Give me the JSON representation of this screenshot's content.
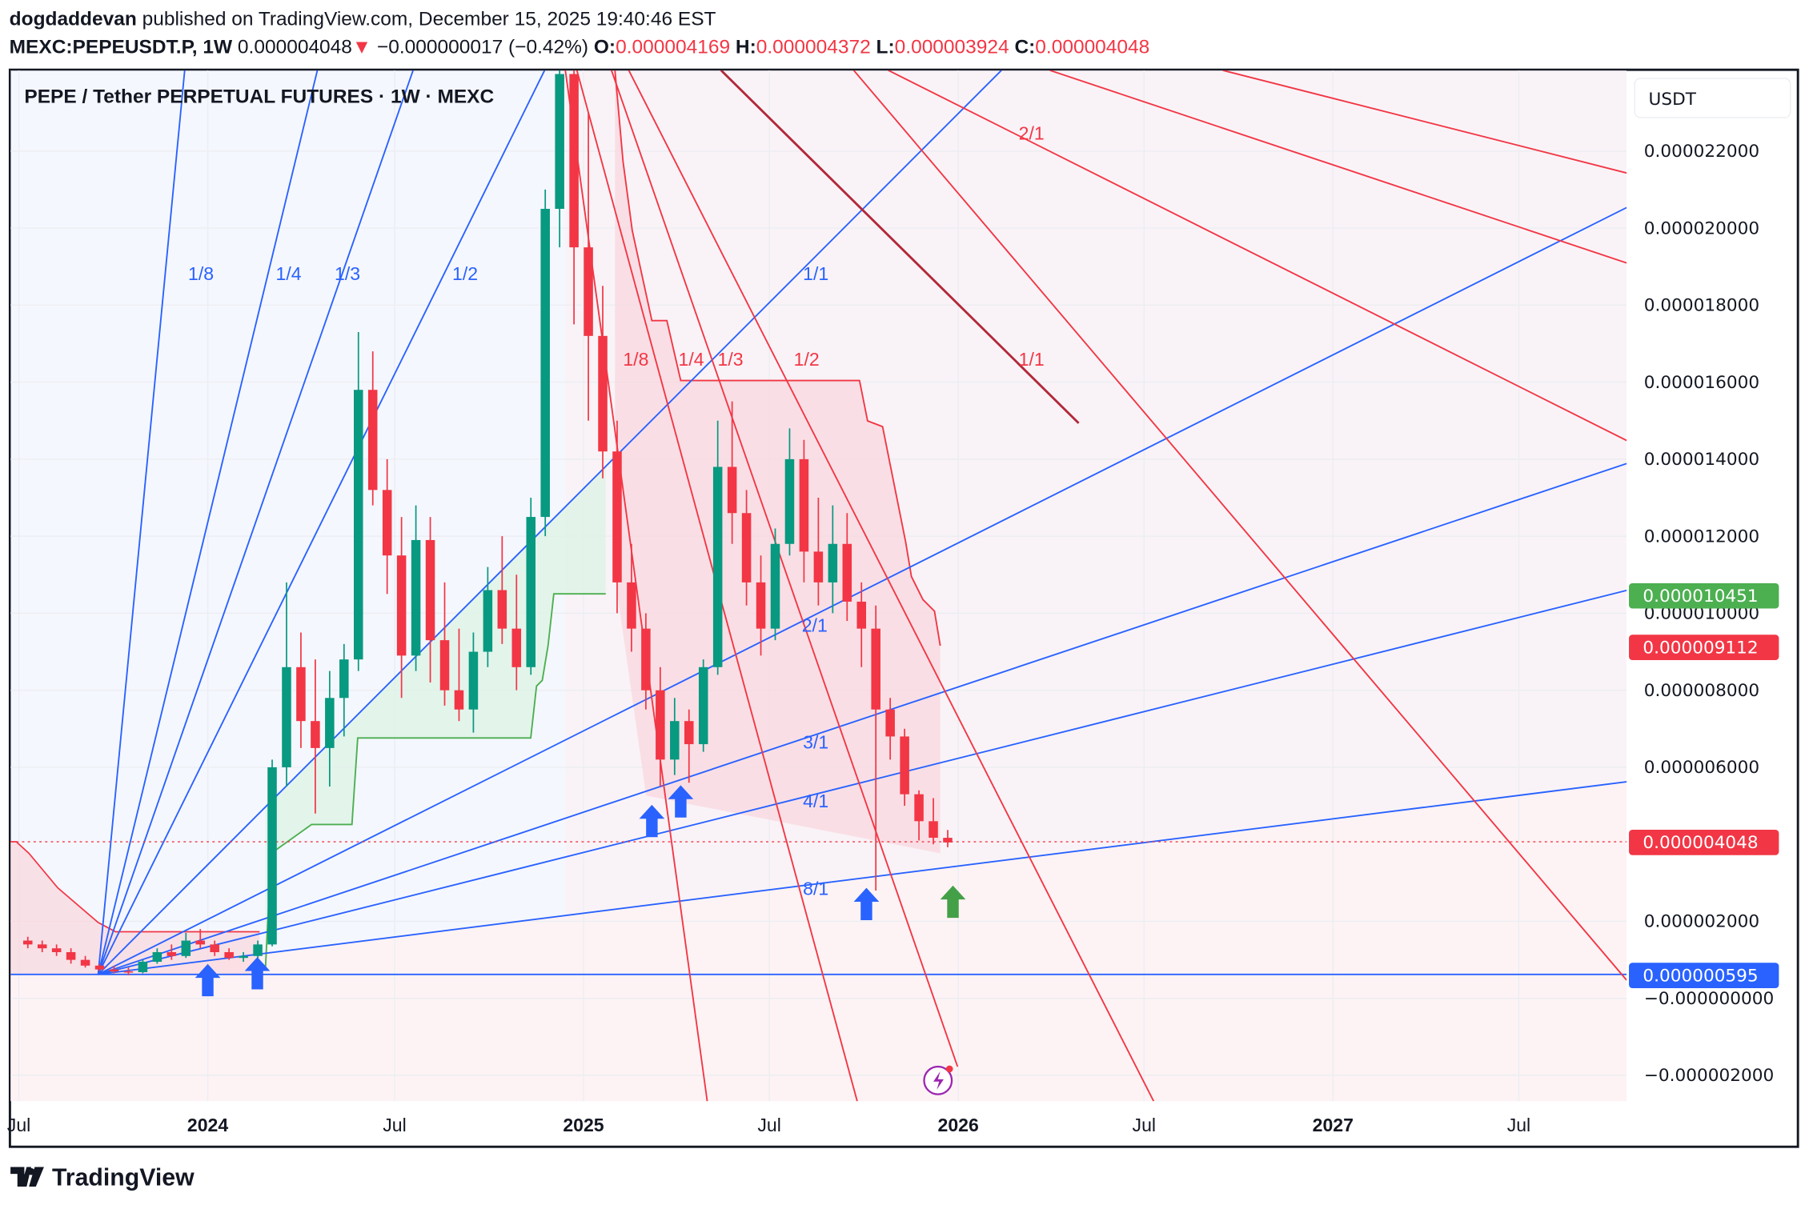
{
  "header": {
    "author": "dogdaddevan",
    "published": " published on TradingView.com, December 15, 2025 19:40:46 EST",
    "symbol": "MEXC:PEPEUSDT.P, 1W",
    "last": "0.000004048",
    "change": "−0.000000017 (−0.42%)",
    "o_label": "O:",
    "o": "0.000004169",
    "h_label": "H:",
    "h": "0.000004372",
    "l_label": "L:",
    "l": "0.000003924",
    "c_label": "C:",
    "c": "0.000004048"
  },
  "chart": {
    "title": "PEPE / Tether PERPETUAL FUTURES · 1W · MEXC",
    "currency": "USDT",
    "price_ticks": [
      {
        "label": "0.000022000",
        "value": 22
      },
      {
        "label": "0.000020000",
        "value": 20
      },
      {
        "label": "0.000018000",
        "value": 18
      },
      {
        "label": "0.000016000",
        "value": 16
      },
      {
        "label": "0.000014000",
        "value": 14
      },
      {
        "label": "0.000012000",
        "value": 12
      },
      {
        "label": "0.000010000",
        "value": 10
      },
      {
        "label": "0.000008000",
        "value": 8
      },
      {
        "label": "0.000006000",
        "value": 6
      },
      {
        "label": "0.000002000",
        "value": 2
      },
      {
        "label": "−0.000000000",
        "value": 0
      },
      {
        "label": "−0.000002000",
        "value": -2
      }
    ],
    "time_ticks": [
      {
        "label": "Jul",
        "date": "2023-07-01",
        "year": false
      },
      {
        "label": "2024",
        "date": "2024-01-01",
        "year": true
      },
      {
        "label": "Jul",
        "date": "2024-07-01",
        "year": false
      },
      {
        "label": "2025",
        "date": "2025-01-01",
        "year": true
      },
      {
        "label": "Jul",
        "date": "2025-07-01",
        "year": false
      },
      {
        "label": "2026",
        "date": "2026-01-01",
        "year": true
      },
      {
        "label": "Jul",
        "date": "2026-07-01",
        "year": false
      },
      {
        "label": "2027",
        "date": "2027-01-01",
        "year": true
      },
      {
        "label": "Jul",
        "date": "2027-07-01",
        "year": false
      }
    ],
    "badges": [
      {
        "label": "0.000010451",
        "value": 10.451,
        "color": "#4caf50"
      },
      {
        "label": "0.000009112",
        "value": 9.112,
        "color": "#f23645"
      },
      {
        "label": "0.000004048",
        "value": 4.048,
        "color": "#f23645"
      },
      {
        "label": "0.000000595",
        "value": 0.595,
        "color": "#2962ff"
      }
    ],
    "fan_blue_labels": [
      "1/8",
      "1/4",
      "1/3",
      "1/2",
      "1/1",
      "2/1",
      "3/1",
      "4/1",
      "8/1"
    ],
    "fan_red_labels": [
      "1/8",
      "1/4",
      "1/3",
      "1/2",
      "1/1",
      "2/1"
    ],
    "colors": {
      "up": "#089981",
      "down": "#f23645",
      "fan_blue": "#2962ff",
      "fan_red": "#f23645",
      "bg": "#ffffff"
    }
  },
  "footer": {
    "brand": "TradingView"
  },
  "chart_data": {
    "type": "candlestick",
    "title": "PEPE / Tether PERPETUAL FUTURES · 1W · MEXC",
    "ylabel": "USDT",
    "unit_note_scale": "values ×1e-6 USDT",
    "ylim": [
      -2.7,
      24
    ],
    "candles": [
      [
        "2023-07-03",
        1.5,
        1.6,
        1.3,
        1.4
      ],
      [
        "2023-07-17",
        1.4,
        1.5,
        1.2,
        1.3
      ],
      [
        "2023-07-31",
        1.3,
        1.4,
        1.1,
        1.2
      ],
      [
        "2023-08-14",
        1.2,
        1.3,
        0.9,
        1.0
      ],
      [
        "2023-08-28",
        1.0,
        1.1,
        0.8,
        0.85
      ],
      [
        "2023-09-11",
        0.85,
        0.9,
        0.7,
        0.75
      ],
      [
        "2023-09-25",
        0.75,
        0.85,
        0.65,
        0.7
      ],
      [
        "2023-10-09",
        0.7,
        0.8,
        0.6,
        0.68
      ],
      [
        "2023-10-23",
        0.68,
        1.0,
        0.65,
        0.95
      ],
      [
        "2023-11-06",
        0.95,
        1.3,
        0.9,
        1.2
      ],
      [
        "2023-11-20",
        1.2,
        1.4,
        1.0,
        1.1
      ],
      [
        "2023-12-04",
        1.1,
        1.7,
        1.05,
        1.5
      ],
      [
        "2023-12-18",
        1.5,
        1.8,
        1.3,
        1.4
      ],
      [
        "2024-01-01",
        1.4,
        1.5,
        1.1,
        1.2
      ],
      [
        "2024-01-15",
        1.2,
        1.3,
        1.0,
        1.05
      ],
      [
        "2024-01-29",
        1.05,
        1.2,
        0.95,
        1.1
      ],
      [
        "2024-02-12",
        1.1,
        1.5,
        1.05,
        1.4
      ],
      [
        "2024-02-26",
        1.4,
        6.2,
        1.35,
        6.0
      ],
      [
        "2024-03-11",
        6.0,
        10.8,
        5.5,
        8.6
      ],
      [
        "2024-03-25",
        8.6,
        9.5,
        6.5,
        7.2
      ],
      [
        "2024-04-08",
        7.2,
        8.8,
        4.8,
        6.5
      ],
      [
        "2024-04-22",
        6.5,
        8.5,
        5.5,
        7.8
      ],
      [
        "2024-05-06",
        7.8,
        9.2,
        6.8,
        8.8
      ],
      [
        "2024-05-20",
        8.8,
        17.3,
        8.5,
        15.8
      ],
      [
        "2024-06-03",
        15.8,
        16.8,
        12.8,
        13.2
      ],
      [
        "2024-06-17",
        13.2,
        14.0,
        10.5,
        11.5
      ],
      [
        "2024-07-01",
        11.5,
        12.5,
        7.8,
        8.9
      ],
      [
        "2024-07-15",
        8.9,
        12.8,
        8.5,
        11.9
      ],
      [
        "2024-07-29",
        11.9,
        12.5,
        8.2,
        9.3
      ],
      [
        "2024-08-12",
        9.3,
        10.8,
        7.6,
        8.0
      ],
      [
        "2024-08-26",
        8.0,
        9.6,
        7.2,
        7.5
      ],
      [
        "2024-09-09",
        7.5,
        9.5,
        6.9,
        9.0
      ],
      [
        "2024-09-23",
        9.0,
        11.2,
        8.6,
        10.6
      ],
      [
        "2024-10-07",
        10.6,
        12.0,
        9.2,
        9.6
      ],
      [
        "2024-10-21",
        9.6,
        11.0,
        8.0,
        8.6
      ],
      [
        "2024-11-04",
        8.6,
        13.0,
        8.4,
        12.5
      ],
      [
        "2024-11-18",
        12.5,
        21.0,
        12.0,
        20.5
      ],
      [
        "2024-12-02",
        20.5,
        28.0,
        19.5,
        24.0
      ],
      [
        "2024-12-16",
        24.0,
        26.0,
        17.5,
        19.5
      ],
      [
        "2024-12-30",
        19.5,
        23.0,
        15.0,
        17.2
      ],
      [
        "2025-01-13",
        17.2,
        18.5,
        13.5,
        14.2
      ],
      [
        "2025-01-27",
        14.2,
        15.0,
        10.0,
        10.8
      ],
      [
        "2025-02-10",
        10.8,
        11.8,
        9.0,
        9.6
      ],
      [
        "2025-02-24",
        9.6,
        10.0,
        7.5,
        8.0
      ],
      [
        "2025-03-10",
        8.0,
        8.6,
        5.5,
        6.2
      ],
      [
        "2025-03-24",
        6.2,
        7.8,
        5.8,
        7.2
      ],
      [
        "2025-04-07",
        7.2,
        7.5,
        5.6,
        6.6
      ],
      [
        "2025-04-21",
        6.6,
        8.8,
        6.4,
        8.6
      ],
      [
        "2025-05-05",
        8.6,
        15.0,
        8.4,
        13.8
      ],
      [
        "2025-05-19",
        13.8,
        15.5,
        11.8,
        12.6
      ],
      [
        "2025-06-02",
        12.6,
        13.2,
        10.2,
        10.8
      ],
      [
        "2025-06-16",
        10.8,
        11.5,
        8.9,
        9.6
      ],
      [
        "2025-06-30",
        9.6,
        12.2,
        9.3,
        11.8
      ],
      [
        "2025-07-14",
        11.8,
        14.8,
        11.5,
        14.0
      ],
      [
        "2025-07-28",
        14.0,
        14.5,
        10.8,
        11.6
      ],
      [
        "2025-08-11",
        11.6,
        13.0,
        10.2,
        10.8
      ],
      [
        "2025-08-25",
        10.8,
        12.8,
        10.0,
        11.8
      ],
      [
        "2025-09-08",
        11.8,
        12.6,
        9.8,
        10.3
      ],
      [
        "2025-09-22",
        10.3,
        10.8,
        8.6,
        9.6
      ],
      [
        "2025-10-06",
        9.6,
        10.2,
        2.8,
        7.5
      ],
      [
        "2025-10-20",
        7.5,
        7.8,
        6.2,
        6.8
      ],
      [
        "2025-11-03",
        6.8,
        7.0,
        5.0,
        5.3
      ],
      [
        "2025-11-17",
        5.3,
        5.4,
        4.1,
        4.6
      ],
      [
        "2025-12-01",
        4.6,
        5.2,
        4.0,
        4.17
      ],
      [
        "2025-12-15",
        4.169,
        4.372,
        3.924,
        4.048
      ]
    ]
  }
}
